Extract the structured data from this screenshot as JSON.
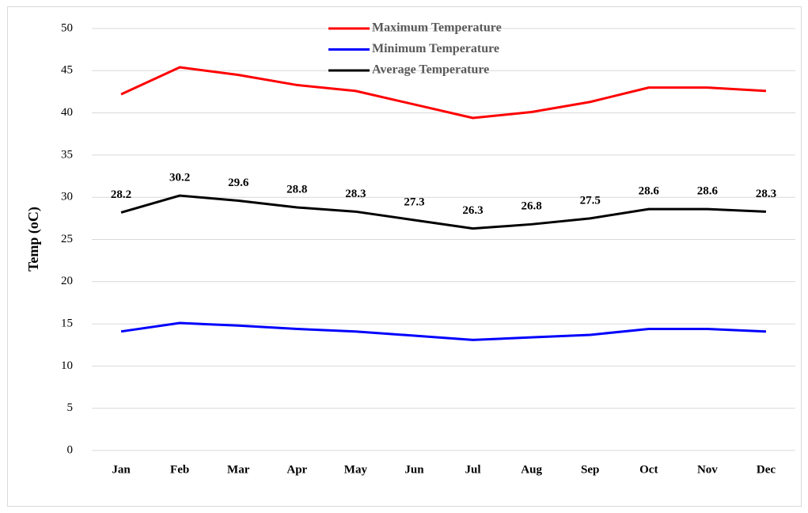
{
  "chart_data": {
    "type": "line",
    "ylabel": "Temp (oC)",
    "categories": [
      "Jan",
      "Feb",
      "Mar",
      "Apr",
      "May",
      "Jun",
      "Jul",
      "Aug",
      "Sep",
      "Oct",
      "Nov",
      "Dec"
    ],
    "series": [
      {
        "name": "Maximum Temperature",
        "color": "#ff0000",
        "values": [
          42.2,
          45.4,
          44.5,
          43.3,
          42.6,
          41.0,
          39.4,
          40.1,
          41.3,
          43.0,
          43.0,
          42.6
        ]
      },
      {
        "name": "Minimum Temperature",
        "color": "#0000ff",
        "values": [
          14.1,
          15.1,
          14.8,
          14.4,
          14.1,
          13.6,
          13.1,
          13.4,
          13.7,
          14.4,
          14.4,
          14.1
        ]
      },
      {
        "name": "Average Temperature",
        "color": "#000000",
        "show_values": true,
        "values": [
          28.2,
          30.2,
          29.6,
          28.8,
          28.3,
          27.3,
          26.3,
          26.8,
          27.5,
          28.6,
          28.6,
          28.3
        ]
      }
    ],
    "ylim": [
      0,
      50
    ],
    "yticks": [
      0,
      5,
      10,
      15,
      20,
      25,
      30,
      35,
      40,
      45,
      50
    ],
    "grid": true,
    "legend": "top"
  }
}
